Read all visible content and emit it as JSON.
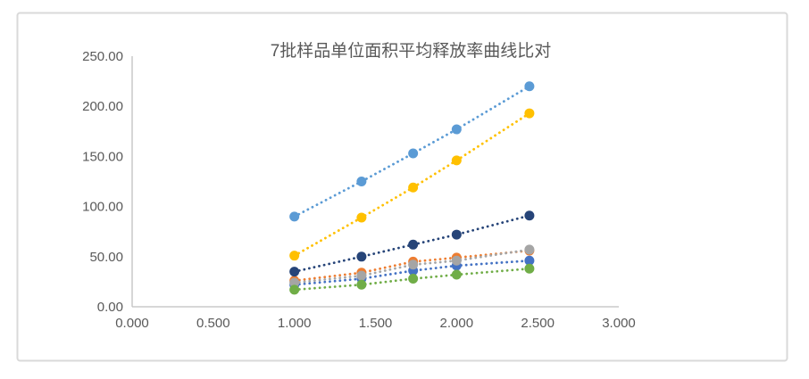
{
  "page": {
    "background": "#ffffff",
    "chart_border_color": "#d9d9d9",
    "chart_background": "#ffffff"
  },
  "chart_data": {
    "type": "scatter",
    "title": "7批样品单位面积平均释放率曲线比对",
    "title_color": "#595959",
    "axis_color": "#bfbfbf",
    "tick_text_color": "#595959",
    "grid": false,
    "legend": "none",
    "line_style": "round-dotted",
    "marker": "circle",
    "xlim": [
      0,
      3
    ],
    "ylim": [
      0,
      250
    ],
    "x_ticks": [
      "0.000",
      "0.500",
      "1.000",
      "1.500",
      "2.000",
      "2.500",
      "3.000"
    ],
    "y_ticks": [
      "0.00",
      "50.00",
      "100.00",
      "150.00",
      "200.00",
      "250.00"
    ],
    "x": [
      1.0,
      1.414,
      1.732,
      2.0,
      2.449
    ],
    "series": [
      {
        "name": "series-blue",
        "color": "#4472C4",
        "values": [
          22,
          28,
          36,
          41,
          46
        ]
      },
      {
        "name": "series-orange",
        "color": "#ED7D31",
        "values": [
          26,
          34,
          45,
          49,
          56
        ]
      },
      {
        "name": "series-gray",
        "color": "#A5A5A5",
        "values": [
          24,
          31,
          42,
          46,
          57
        ]
      },
      {
        "name": "series-yellow",
        "color": "#FFC000",
        "values": [
          51,
          89,
          119,
          146,
          193
        ]
      },
      {
        "name": "series-light-blue",
        "color": "#5B9BD5",
        "values": [
          90,
          125,
          153,
          177,
          220
        ]
      },
      {
        "name": "series-green",
        "color": "#70AD47",
        "values": [
          17,
          22,
          28,
          32,
          38
        ]
      },
      {
        "name": "series-dark-blue",
        "color": "#264478",
        "values": [
          35,
          50,
          62,
          72,
          91
        ]
      }
    ]
  }
}
